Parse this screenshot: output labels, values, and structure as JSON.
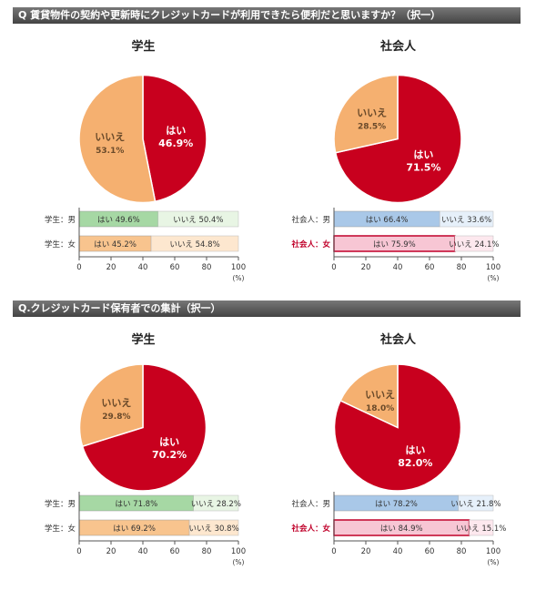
{
  "sections": [
    {
      "title": "Q 賃貸物件の契約や更新時にクレジットカードが利用できたら便利だと思いますか？（択一）"
    },
    {
      "title": "Q.クレジットカード保有者での集計（択一）"
    }
  ],
  "colors": {
    "yes_pie": "#c8001e",
    "no_pie": "#f5b070",
    "male_student_yes": "#a6d8a4",
    "male_student_no": "#e8f5e4",
    "female_student_yes": "#f8c48e",
    "female_student_no": "#fde7cf",
    "male_worker_yes": "#a9c8e8",
    "male_worker_no": "#e6f0fa",
    "female_worker_yes": "#f7c6d4",
    "female_worker_no": "#fde8ee",
    "female_worker_border": "#c0002a",
    "female_worker_label": "#c0002a"
  },
  "chart_data": [
    {
      "type": "pie",
      "title": "学生",
      "section": 0,
      "slices": [
        {
          "label": "はい",
          "value": 46.9,
          "text": "46.9%"
        },
        {
          "label": "いいえ",
          "value": 53.1,
          "text": "53.1%"
        }
      ]
    },
    {
      "type": "pie",
      "title": "社会人",
      "section": 0,
      "slices": [
        {
          "label": "はい",
          "value": 71.5,
          "text": "71.5%"
        },
        {
          "label": "いいえ",
          "value": 28.5,
          "text": "28.5%"
        }
      ]
    },
    {
      "type": "bar",
      "orientation": "horizontal-stacked",
      "section": 0,
      "xlim": [
        0,
        100
      ],
      "ticks": [
        0,
        20,
        40,
        60,
        80,
        100
      ],
      "unit": "(%)",
      "rows": [
        {
          "label": "学生：男",
          "yes": 49.6,
          "no": 50.4,
          "yes_text": "はい 49.6%",
          "no_text": "いいえ 50.4%",
          "style": "male_student"
        },
        {
          "label": "学生：女",
          "yes": 45.2,
          "no": 54.8,
          "yes_text": "はい 45.2%",
          "no_text": "いいえ 54.8%",
          "style": "female_student"
        }
      ]
    },
    {
      "type": "bar",
      "orientation": "horizontal-stacked",
      "section": 0,
      "xlim": [
        0,
        100
      ],
      "ticks": [
        0,
        20,
        40,
        60,
        80,
        100
      ],
      "unit": "(%)",
      "rows": [
        {
          "label": "社会人：男",
          "yes": 66.4,
          "no": 33.6,
          "yes_text": "はい 66.4%",
          "no_text": "いいえ 33.6%",
          "style": "male_worker"
        },
        {
          "label": "社会人：女",
          "yes": 75.9,
          "no": 24.1,
          "yes_text": "はい 75.9%",
          "no_text": "いいえ 24.1%",
          "style": "female_worker"
        }
      ]
    },
    {
      "type": "pie",
      "title": "学生",
      "section": 1,
      "slices": [
        {
          "label": "はい",
          "value": 70.2,
          "text": "70.2%"
        },
        {
          "label": "いいえ",
          "value": 29.8,
          "text": "29.8%"
        }
      ]
    },
    {
      "type": "pie",
      "title": "社会人",
      "section": 1,
      "slices": [
        {
          "label": "はい",
          "value": 82.0,
          "text": "82.0%"
        },
        {
          "label": "いいえ",
          "value": 18.0,
          "text": "18.0%"
        }
      ]
    },
    {
      "type": "bar",
      "orientation": "horizontal-stacked",
      "section": 1,
      "xlim": [
        0,
        100
      ],
      "ticks": [
        0,
        20,
        40,
        60,
        80,
        100
      ],
      "unit": "(%)",
      "rows": [
        {
          "label": "学生：男",
          "yes": 71.8,
          "no": 28.2,
          "yes_text": "はい 71.8%",
          "no_text": "いいえ 28.2%",
          "style": "male_student"
        },
        {
          "label": "学生：女",
          "yes": 69.2,
          "no": 30.8,
          "yes_text": "はい 69.2%",
          "no_text": "いいえ 30.8%",
          "style": "female_student"
        }
      ]
    },
    {
      "type": "bar",
      "orientation": "horizontal-stacked",
      "section": 1,
      "xlim": [
        0,
        100
      ],
      "ticks": [
        0,
        20,
        40,
        60,
        80,
        100
      ],
      "unit": "(%)",
      "rows": [
        {
          "label": "社会人：男",
          "yes": 78.2,
          "no": 21.8,
          "yes_text": "はい 78.2%",
          "no_text": "いいえ 21.8%",
          "style": "male_worker"
        },
        {
          "label": "社会人：女",
          "yes": 84.9,
          "no": 15.1,
          "yes_text": "はい 84.9%",
          "no_text": "いいえ 15.1%",
          "style": "female_worker"
        }
      ]
    }
  ]
}
